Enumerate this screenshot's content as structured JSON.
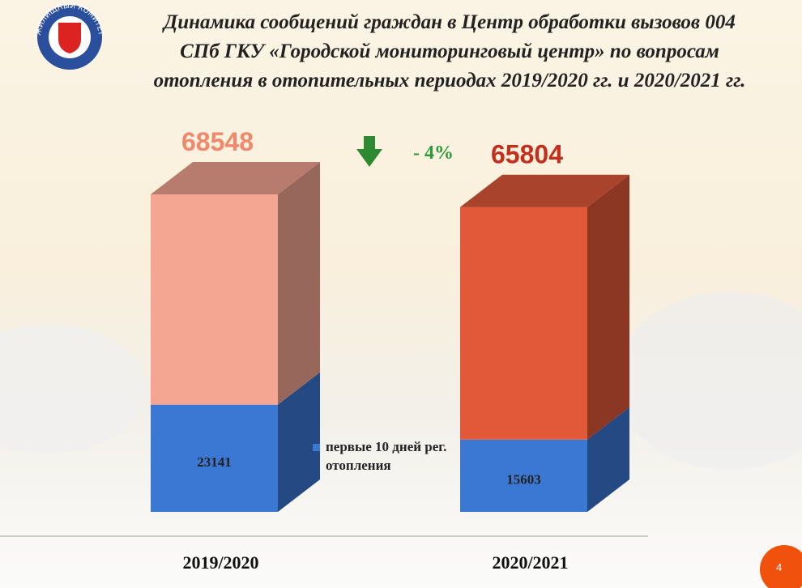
{
  "chart_data": {
    "type": "stacked-bar-3d",
    "title": [
      "Динамика сообщений граждан в Центр обработки вызовов 004",
      "СПб ГКУ «Городской мониторинговый центр» по вопросам",
      "отопления в отопительных периодах 2019/2020 гг. и 2020/2021 гг."
    ],
    "logo_text": "ЖИЛИЩНЫЙ КОМИТЕТ",
    "categories": [
      "2019/2020",
      "2020/2021"
    ],
    "series": [
      {
        "name": "первые 10 дней рег. отопления",
        "color": "#3b78d4",
        "values": [
          23141,
          15603
        ]
      },
      {
        "colors": [
          "#f5a692",
          "#e2593a"
        ],
        "values": [
          45407,
          50201
        ]
      }
    ],
    "totals": [
      68548,
      65804
    ],
    "total_label_colors": [
      "#f0896c",
      "#c42e1a"
    ],
    "annotation": "- 4%",
    "annotation_color": "#2e9a3a",
    "page_number": "4"
  }
}
